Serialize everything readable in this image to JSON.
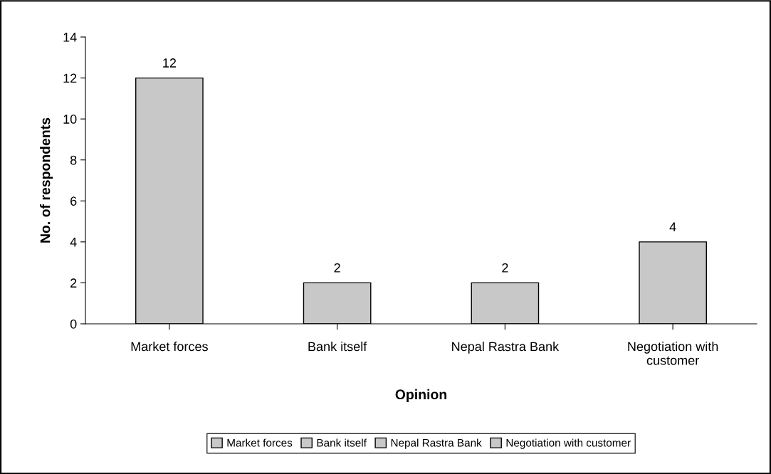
{
  "chart_data": {
    "type": "bar",
    "xlabel": "Opinion",
    "ylabel": "No. of respondents",
    "categories": [
      "Market forces",
      "Bank itself",
      "Nepal Rastra Bank",
      "Negotiation with\ncustomer"
    ],
    "stacked": true,
    "series": [
      {
        "name": "Market forces",
        "color": "#c8c8c8",
        "values": [
          12,
          null,
          null,
          null
        ]
      },
      {
        "name": "Bank itself",
        "color": "#c8c8c8",
        "values": [
          null,
          2,
          null,
          null
        ]
      },
      {
        "name": "Nepal Rastra Bank",
        "color": "#c8c8c8",
        "values": [
          null,
          null,
          2,
          null
        ]
      },
      {
        "name": "Negotiation with customer",
        "color": "#c8c8c8",
        "values": [
          null,
          null,
          null,
          4
        ]
      }
    ],
    "ylim": [
      0,
      14
    ],
    "yticks": [
      0,
      2,
      4,
      6,
      8,
      10,
      12,
      14
    ],
    "data_labels": true,
    "legend": "bottom",
    "grid": false
  }
}
